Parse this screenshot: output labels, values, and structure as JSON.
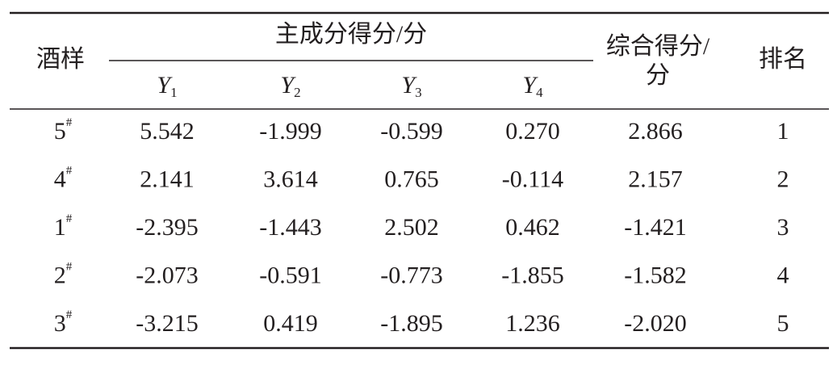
{
  "table": {
    "header": {
      "sample": "酒样",
      "group": "主成分得分/分",
      "components": [
        {
          "base": "Y",
          "sub": "1"
        },
        {
          "base": "Y",
          "sub": "2"
        },
        {
          "base": "Y",
          "sub": "3"
        },
        {
          "base": "Y",
          "sub": "4"
        }
      ],
      "composite": [
        "综合得分/",
        "分"
      ],
      "rank": "排名"
    },
    "rows": [
      {
        "sample": {
          "num": "5",
          "sup": "#"
        },
        "scores": [
          "5.542",
          "-1.999",
          "-0.599",
          "0.270"
        ],
        "composite": "2.866",
        "rank": "1"
      },
      {
        "sample": {
          "num": "4",
          "sup": "#"
        },
        "scores": [
          "2.141",
          "3.614",
          "0.765",
          "-0.114"
        ],
        "composite": "2.157",
        "rank": "2"
      },
      {
        "sample": {
          "num": "1",
          "sup": "#"
        },
        "scores": [
          "-2.395",
          "-1.443",
          "2.502",
          "0.462"
        ],
        "composite": "-1.421",
        "rank": "3"
      },
      {
        "sample": {
          "num": "2",
          "sup": "#"
        },
        "scores": [
          "-2.073",
          "-0.591",
          "-0.773",
          "-1.855"
        ],
        "composite": "-1.582",
        "rank": "4"
      },
      {
        "sample": {
          "num": "3",
          "sup": "#"
        },
        "scores": [
          "-3.215",
          "0.419",
          "-1.895",
          "1.236"
        ],
        "composite": "-2.020",
        "rank": "5"
      }
    ]
  }
}
